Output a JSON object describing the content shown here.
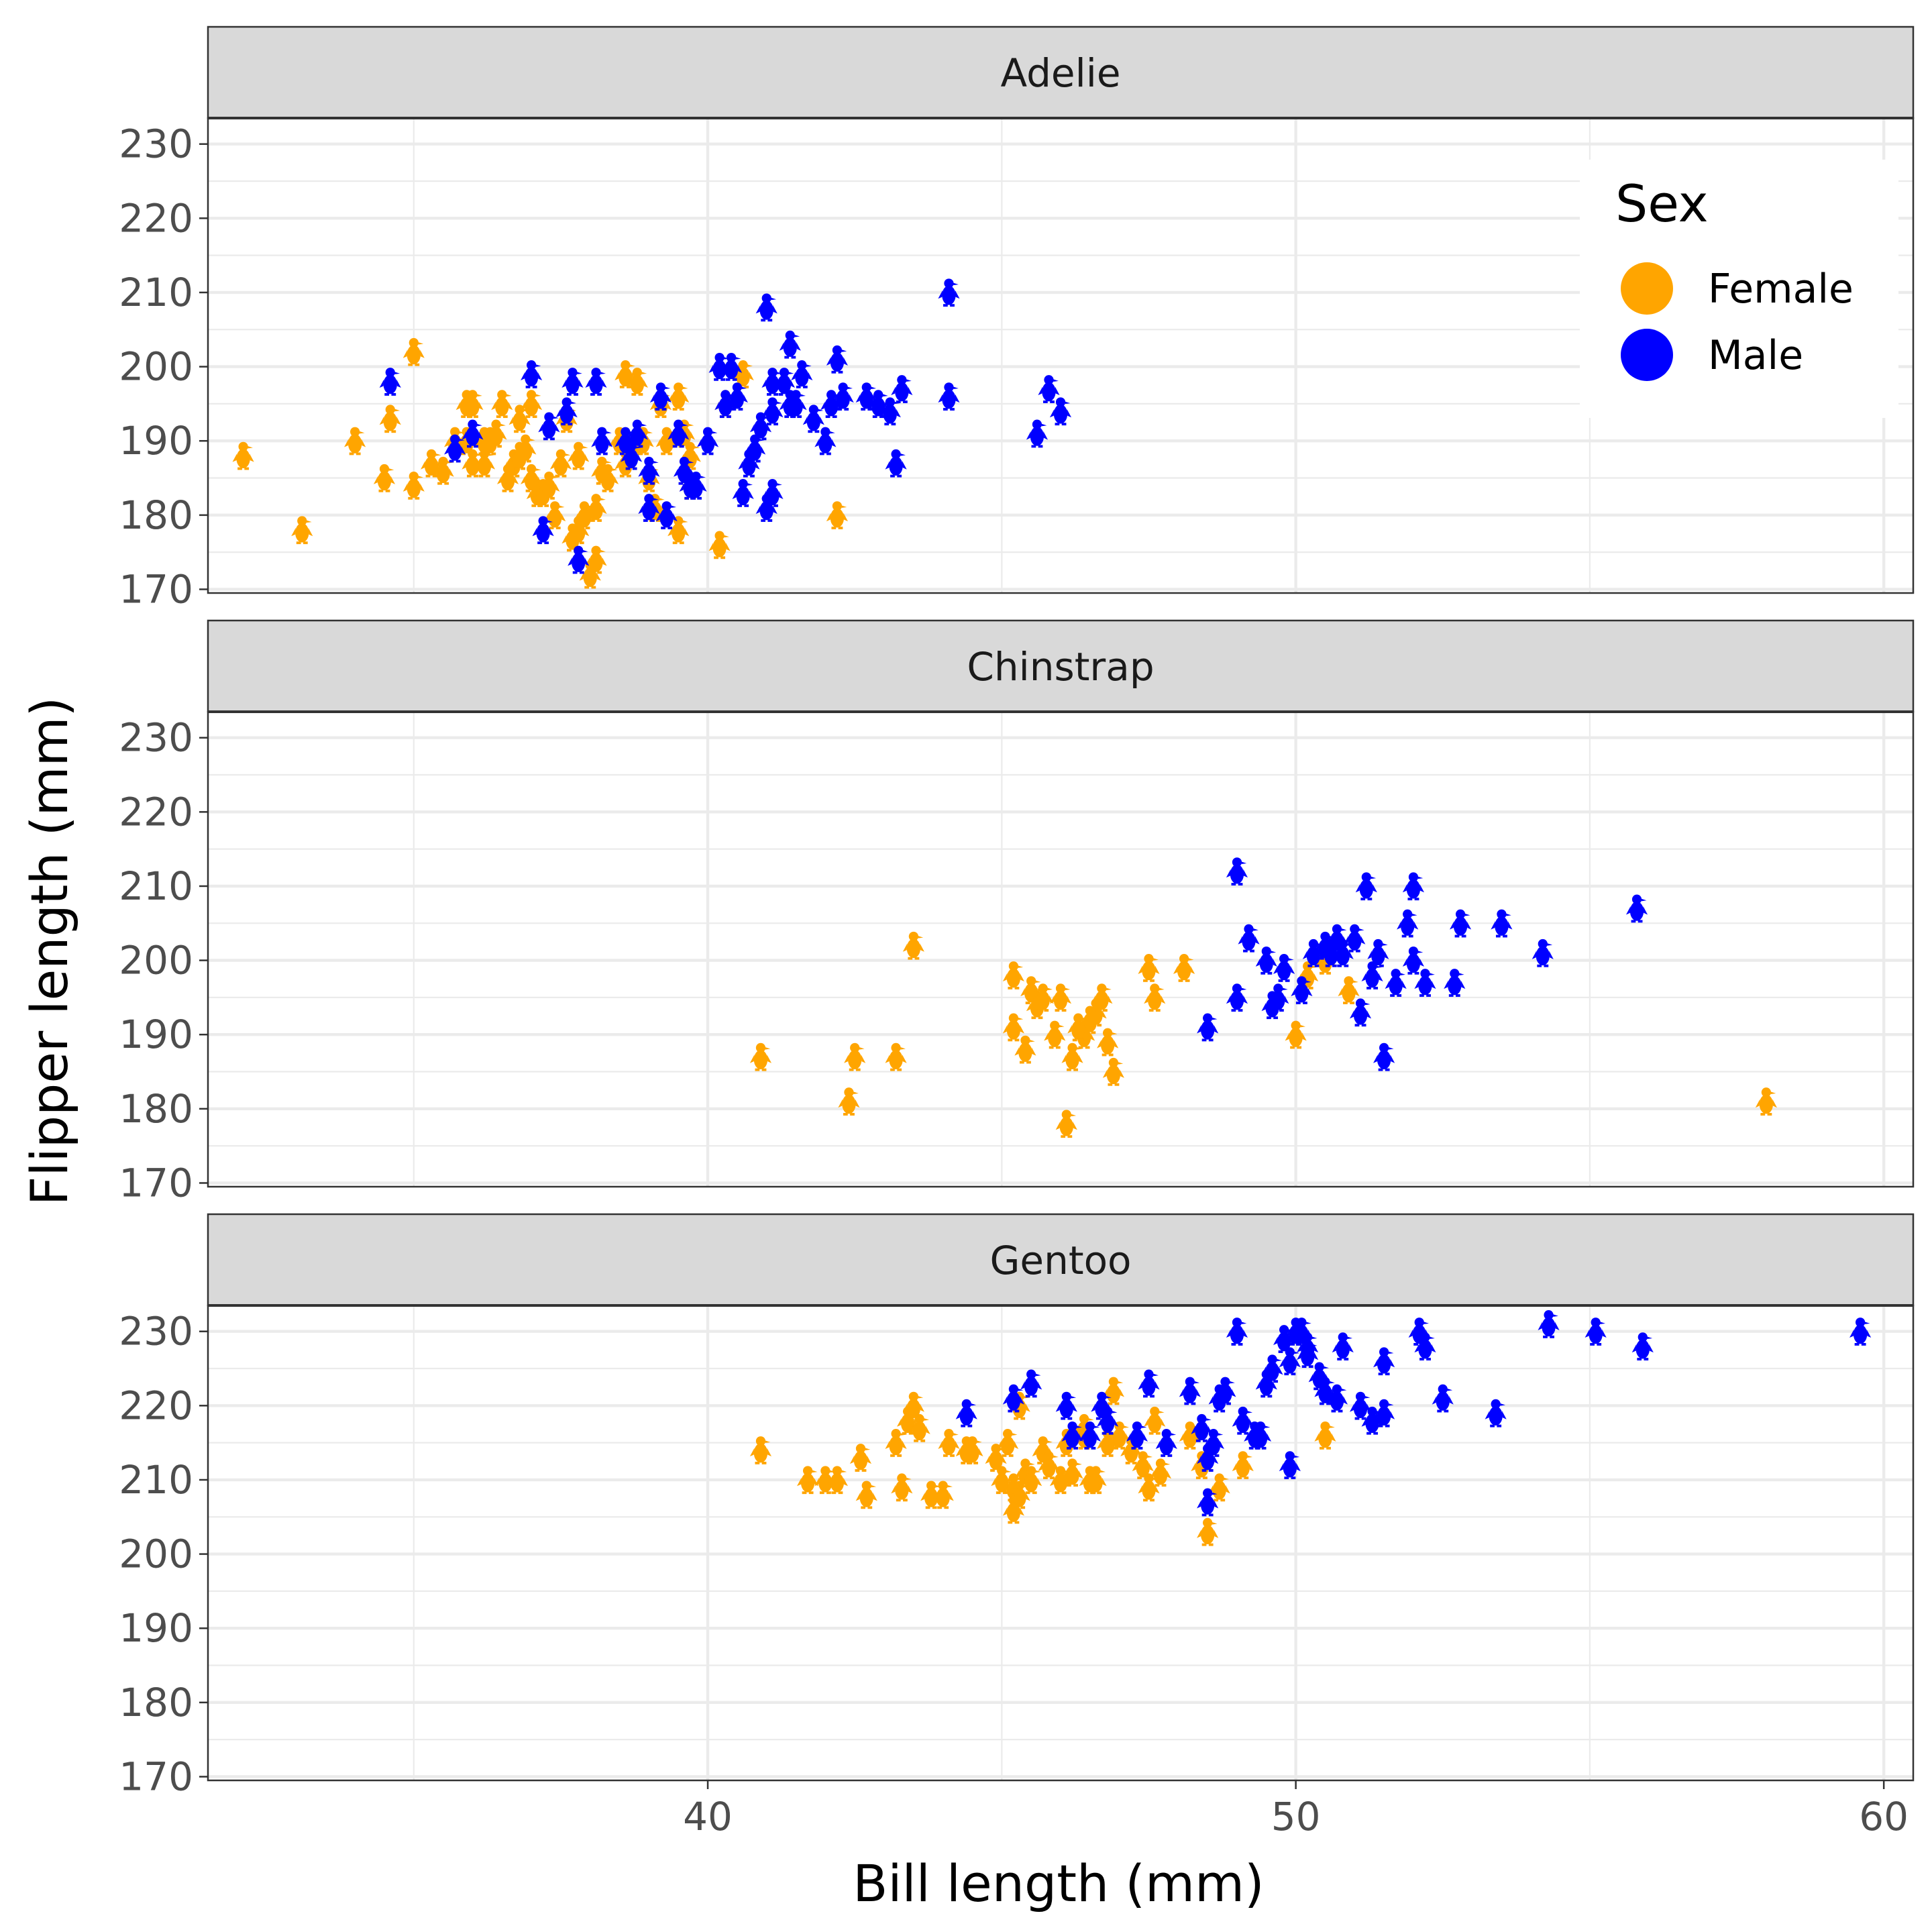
{
  "chart_data": {
    "type": "scatter",
    "facet_by": "species",
    "facets": [
      "Adelie",
      "Chinstrap",
      "Gentoo"
    ],
    "xlabel": "Bill length (mm)",
    "ylabel": "Flipper length (mm)",
    "xlim": [
      31.5,
      60.5
    ],
    "ylim": [
      169.5,
      233.5
    ],
    "x_ticks": [
      40,
      50,
      60
    ],
    "y_ticks": [
      170,
      180,
      190,
      200,
      210,
      220,
      230
    ],
    "grid": true,
    "marker": "penguin-icon",
    "legend": {
      "title": "Sex",
      "placement": "inside top-right of first panel",
      "entries": [
        {
          "label": "Female",
          "color": "#FFA500"
        },
        {
          "label": "Male",
          "color": "#0000FF"
        }
      ]
    },
    "series": [
      {
        "facet": "Adelie",
        "name": "Female",
        "color": "#FFA500",
        "points": [
          [
            32.1,
            188
          ],
          [
            33.1,
            178
          ],
          [
            34.0,
            190
          ],
          [
            34.5,
            185
          ],
          [
            35.0,
            184
          ],
          [
            35.3,
            187
          ],
          [
            35.5,
            186
          ],
          [
            35.7,
            190
          ],
          [
            35.9,
            190
          ],
          [
            36.0,
            187
          ],
          [
            36.2,
            187
          ],
          [
            36.3,
            190
          ],
          [
            36.4,
            191
          ],
          [
            36.6,
            185
          ],
          [
            36.7,
            187
          ],
          [
            36.8,
            188
          ],
          [
            36.9,
            189
          ],
          [
            37.0,
            185
          ],
          [
            37.1,
            183
          ],
          [
            37.2,
            183
          ],
          [
            37.3,
            184
          ],
          [
            37.4,
            180
          ],
          [
            37.5,
            187
          ],
          [
            37.6,
            193
          ],
          [
            37.8,
            178
          ],
          [
            37.9,
            180
          ],
          [
            38.0,
            172
          ],
          [
            38.1,
            181
          ],
          [
            38.2,
            186
          ],
          [
            38.3,
            185
          ],
          [
            38.5,
            190
          ],
          [
            38.6,
            187
          ],
          [
            38.8,
            190
          ],
          [
            39.0,
            185
          ],
          [
            39.1,
            181
          ],
          [
            39.2,
            195
          ],
          [
            39.3,
            190
          ],
          [
            39.5,
            178
          ],
          [
            39.6,
            191
          ],
          [
            39.7,
            184
          ],
          [
            40.2,
            176
          ],
          [
            40.3,
            195
          ],
          [
            42.2,
            180
          ],
          [
            35.9,
            195
          ],
          [
            36.5,
            195
          ],
          [
            37.0,
            195
          ],
          [
            35.0,
            202
          ],
          [
            36.8,
            193
          ],
          [
            38.9,
            190
          ],
          [
            39.5,
            196
          ],
          [
            37.7,
            177
          ],
          [
            38.1,
            174
          ],
          [
            38.6,
            199
          ],
          [
            38.8,
            198
          ],
          [
            39.7,
            188
          ],
          [
            36.2,
            190
          ],
          [
            40.6,
            199
          ],
          [
            37.8,
            188
          ],
          [
            34.6,
            193
          ],
          [
            36.0,
            195
          ]
        ]
      },
      {
        "facet": "Adelie",
        "name": "Male",
        "color": "#0000FF",
        "points": [
          [
            34.6,
            198
          ],
          [
            35.7,
            189
          ],
          [
            37.2,
            178
          ],
          [
            37.3,
            192
          ],
          [
            37.6,
            194
          ],
          [
            37.7,
            198
          ],
          [
            37.8,
            174
          ],
          [
            38.1,
            198
          ],
          [
            38.2,
            190
          ],
          [
            38.6,
            190
          ],
          [
            38.8,
            191
          ],
          [
            39.0,
            186
          ],
          [
            39.2,
            196
          ],
          [
            39.3,
            180
          ],
          [
            39.5,
            191
          ],
          [
            39.6,
            186
          ],
          [
            39.7,
            184
          ],
          [
            39.8,
            184
          ],
          [
            40.0,
            190
          ],
          [
            40.2,
            200
          ],
          [
            40.3,
            195
          ],
          [
            40.5,
            196
          ],
          [
            40.6,
            183
          ],
          [
            40.7,
            187
          ],
          [
            40.8,
            189
          ],
          [
            40.9,
            192
          ],
          [
            41.1,
            194
          ],
          [
            41.0,
            208
          ],
          [
            41.3,
            198
          ],
          [
            41.4,
            203
          ],
          [
            41.5,
            195
          ],
          [
            41.6,
            199
          ],
          [
            41.8,
            193
          ],
          [
            42.0,
            190
          ],
          [
            42.1,
            195
          ],
          [
            42.2,
            201
          ],
          [
            42.3,
            196
          ],
          [
            42.7,
            196
          ],
          [
            42.9,
            195
          ],
          [
            43.1,
            194
          ],
          [
            43.2,
            187
          ],
          [
            43.3,
            197
          ],
          [
            44.1,
            210
          ],
          [
            44.1,
            196
          ],
          [
            45.6,
            191
          ],
          [
            45.8,
            197
          ],
          [
            46.0,
            194
          ],
          [
            37.0,
            199
          ],
          [
            38.7,
            188
          ],
          [
            40.4,
            200
          ],
          [
            41.1,
            198
          ],
          [
            41.4,
            195
          ],
          [
            41.0,
            181
          ],
          [
            36.0,
            191
          ],
          [
            39.0,
            181
          ],
          [
            41.1,
            183
          ]
        ]
      },
      {
        "facet": "Chinstrap",
        "name": "Female",
        "color": "#FFA500",
        "points": [
          [
            40.9,
            187
          ],
          [
            42.4,
            181
          ],
          [
            42.5,
            187
          ],
          [
            43.2,
            187
          ],
          [
            43.5,
            202
          ],
          [
            45.2,
            198
          ],
          [
            45.2,
            191
          ],
          [
            45.4,
            188
          ],
          [
            45.5,
            196
          ],
          [
            45.6,
            194
          ],
          [
            45.7,
            195
          ],
          [
            45.9,
            190
          ],
          [
            46.0,
            195
          ],
          [
            46.1,
            178
          ],
          [
            46.2,
            187
          ],
          [
            46.4,
            190
          ],
          [
            46.5,
            192
          ],
          [
            46.6,
            193
          ],
          [
            46.7,
            195
          ],
          [
            46.8,
            189
          ],
          [
            46.9,
            185
          ],
          [
            47.5,
            199
          ],
          [
            47.6,
            195
          ],
          [
            48.1,
            199
          ],
          [
            50.0,
            190
          ],
          [
            50.2,
            198
          ],
          [
            50.5,
            200
          ],
          [
            50.9,
            196
          ],
          [
            58.0,
            181
          ],
          [
            46.3,
            191
          ]
        ]
      },
      {
        "facet": "Chinstrap",
        "name": "Male",
        "color": "#0000FF",
        "points": [
          [
            48.5,
            191
          ],
          [
            49.0,
            212
          ],
          [
            49.0,
            195
          ],
          [
            49.2,
            203
          ],
          [
            49.5,
            200
          ],
          [
            49.6,
            194
          ],
          [
            49.7,
            195
          ],
          [
            49.8,
            199
          ],
          [
            50.1,
            196
          ],
          [
            50.3,
            201
          ],
          [
            50.5,
            202
          ],
          [
            50.6,
            201
          ],
          [
            50.7,
            203
          ],
          [
            50.8,
            201
          ],
          [
            51.0,
            203
          ],
          [
            51.1,
            193
          ],
          [
            51.3,
            198
          ],
          [
            51.4,
            201
          ],
          [
            51.5,
            187
          ],
          [
            51.7,
            197
          ],
          [
            51.9,
            205
          ],
          [
            52.0,
            210
          ],
          [
            52.2,
            197
          ],
          [
            52.7,
            197
          ],
          [
            52.8,
            205
          ],
          [
            53.5,
            205
          ],
          [
            54.2,
            201
          ],
          [
            55.8,
            207
          ],
          [
            51.2,
            210
          ],
          [
            52.0,
            200
          ]
        ]
      },
      {
        "facet": "Gentoo",
        "name": "Female",
        "color": "#FFA500",
        "points": [
          [
            40.9,
            214
          ],
          [
            41.7,
            210
          ],
          [
            42.0,
            210
          ],
          [
            42.2,
            210
          ],
          [
            42.6,
            213
          ],
          [
            42.7,
            208
          ],
          [
            43.2,
            215
          ],
          [
            43.3,
            209
          ],
          [
            43.4,
            218
          ],
          [
            43.5,
            220
          ],
          [
            43.6,
            217
          ],
          [
            43.8,
            208
          ],
          [
            44.0,
            208
          ],
          [
            44.4,
            214
          ],
          [
            44.5,
            214
          ],
          [
            44.9,
            213
          ],
          [
            45.0,
            210
          ],
          [
            45.1,
            215
          ],
          [
            45.2,
            209
          ],
          [
            45.3,
            208
          ],
          [
            45.4,
            211
          ],
          [
            45.5,
            210
          ],
          [
            45.7,
            214
          ],
          [
            45.8,
            212
          ],
          [
            46.0,
            210
          ],
          [
            46.1,
            215
          ],
          [
            46.2,
            211
          ],
          [
            46.4,
            216
          ],
          [
            46.5,
            210
          ],
          [
            46.6,
            210
          ],
          [
            46.8,
            215
          ],
          [
            47.0,
            216
          ],
          [
            47.2,
            214
          ],
          [
            47.4,
            212
          ],
          [
            47.5,
            209
          ],
          [
            47.7,
            211
          ],
          [
            48.2,
            216
          ],
          [
            48.4,
            212
          ],
          [
            48.5,
            203
          ],
          [
            48.7,
            209
          ],
          [
            49.1,
            212
          ],
          [
            50.5,
            216
          ],
          [
            46.9,
            222
          ],
          [
            47.6,
            218
          ],
          [
            44.1,
            215
          ],
          [
            45.3,
            220
          ],
          [
            46.4,
            217
          ],
          [
            45.2,
            206
          ]
        ]
      },
      {
        "facet": "Gentoo",
        "name": "Male",
        "color": "#0000FF",
        "points": [
          [
            44.4,
            219
          ],
          [
            45.2,
            221
          ],
          [
            45.5,
            223
          ],
          [
            46.1,
            220
          ],
          [
            46.2,
            216
          ],
          [
            46.5,
            216
          ],
          [
            46.7,
            220
          ],
          [
            46.8,
            218
          ],
          [
            47.3,
            216
          ],
          [
            47.8,
            215
          ],
          [
            48.2,
            222
          ],
          [
            48.4,
            217
          ],
          [
            48.6,
            215
          ],
          [
            48.7,
            221
          ],
          [
            48.8,
            222
          ],
          [
            49.0,
            230
          ],
          [
            49.1,
            218
          ],
          [
            49.3,
            216
          ],
          [
            49.4,
            216
          ],
          [
            49.5,
            223
          ],
          [
            49.6,
            225
          ],
          [
            49.8,
            229
          ],
          [
            49.9,
            226
          ],
          [
            50.0,
            230
          ],
          [
            50.1,
            230
          ],
          [
            50.2,
            228
          ],
          [
            50.4,
            224
          ],
          [
            50.5,
            222
          ],
          [
            50.7,
            221
          ],
          [
            50.8,
            228
          ],
          [
            51.1,
            220
          ],
          [
            51.3,
            218
          ],
          [
            51.5,
            226
          ],
          [
            52.1,
            230
          ],
          [
            52.2,
            228
          ],
          [
            52.5,
            221
          ],
          [
            53.4,
            219
          ],
          [
            54.3,
            231
          ],
          [
            55.1,
            230
          ],
          [
            55.9,
            228
          ],
          [
            59.6,
            230
          ],
          [
            48.5,
            207
          ],
          [
            49.9,
            212
          ],
          [
            50.2,
            227
          ],
          [
            47.5,
            223
          ],
          [
            51.5,
            219
          ],
          [
            48.5,
            213
          ]
        ]
      }
    ]
  }
}
